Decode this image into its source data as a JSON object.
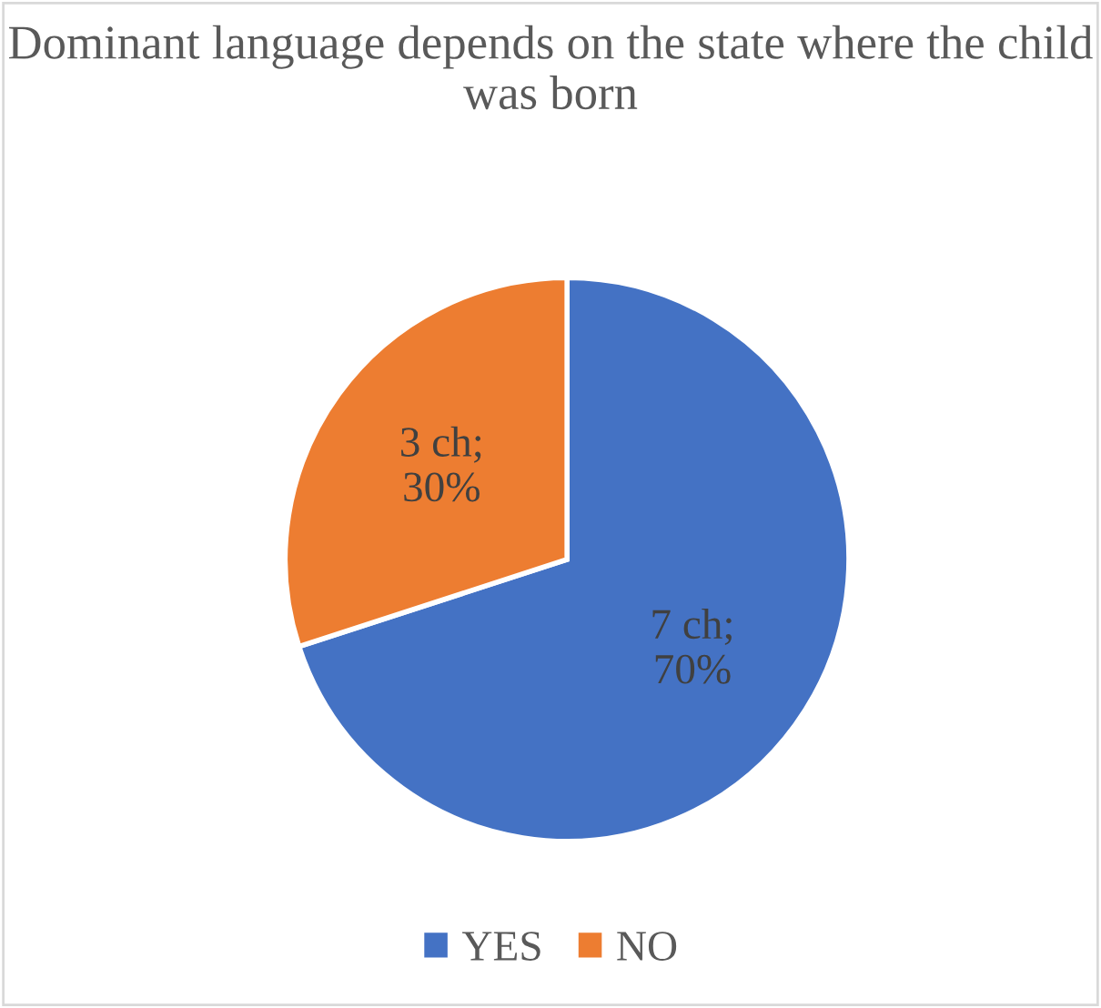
{
  "chart_data": {
    "type": "pie",
    "title": "Dominant language depends on the state where the child was born",
    "categories": [
      "YES",
      "NO"
    ],
    "values": [
      7,
      3
    ],
    "colors": [
      "#4472c4",
      "#ed7d31"
    ],
    "value_labels": [
      "7 ch;\n70%",
      "3 ch;\n30%"
    ],
    "legend": "bottom"
  }
}
